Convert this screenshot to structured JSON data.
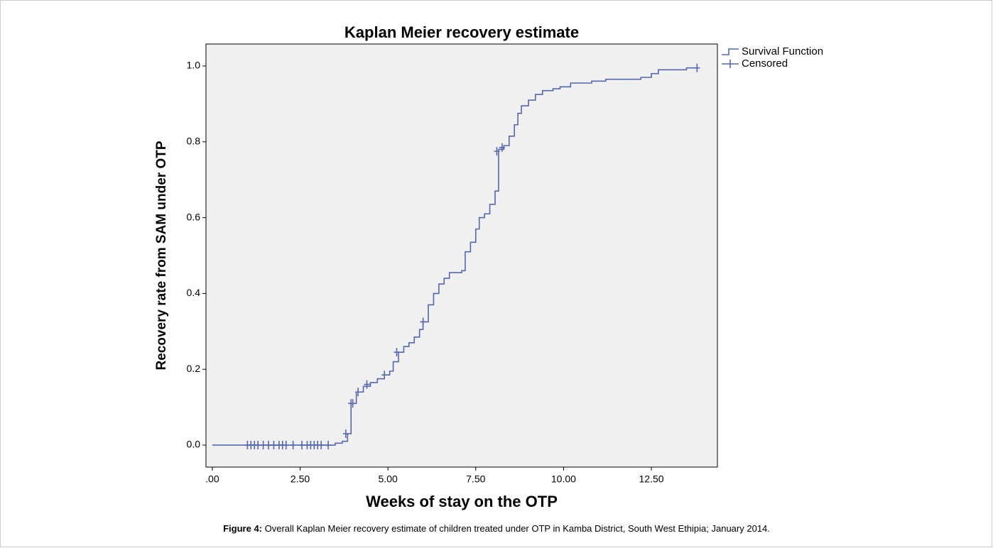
{
  "chart_data": {
    "type": "step",
    "title": "Kaplan Meier recovery estimate",
    "xlabel": "Weeks of stay on the OTP",
    "ylabel": "Recovery rate from SAM under OTP",
    "xlim": [
      -0.18,
      14.38
    ],
    "ylim": [
      -0.058,
      1.058
    ],
    "xticks": [
      {
        "value": 0,
        "label": ".00"
      },
      {
        "value": 2.5,
        "label": "2.50"
      },
      {
        "value": 5,
        "label": "5.00"
      },
      {
        "value": 7.5,
        "label": "7.50"
      },
      {
        "value": 10,
        "label": "10.00"
      },
      {
        "value": 12.5,
        "label": "12.50"
      }
    ],
    "yticks": [
      {
        "value": 0,
        "label": "0.0"
      },
      0.2,
      0.4,
      0.6,
      0.8,
      {
        "value": 1,
        "label": "1.0"
      }
    ],
    "series": [
      {
        "name": "Survival Function",
        "marker": "step",
        "color": "#5567b0",
        "x": [
          0,
          3.5,
          3.7,
          3.85,
          3.95,
          4.1,
          4.3,
          4.5,
          4.7,
          4.9,
          5.05,
          5.15,
          5.3,
          5.45,
          5.6,
          5.75,
          5.9,
          6.0,
          6.15,
          6.3,
          6.45,
          6.6,
          6.75,
          7.1,
          7.2,
          7.35,
          7.5,
          7.6,
          7.75,
          7.9,
          8.05,
          8.15,
          8.3,
          8.45,
          8.6,
          8.7,
          8.8,
          9.0,
          9.2,
          9.4,
          9.7,
          9.9,
          10.2,
          10.8,
          11.2,
          12.2,
          12.5,
          12.7,
          13.5,
          13.8
        ],
        "values": [
          0,
          0.005,
          0.01,
          0.03,
          0.11,
          0.14,
          0.155,
          0.165,
          0.175,
          0.185,
          0.195,
          0.22,
          0.245,
          0.26,
          0.27,
          0.285,
          0.305,
          0.325,
          0.37,
          0.4,
          0.425,
          0.44,
          0.455,
          0.46,
          0.51,
          0.535,
          0.57,
          0.6,
          0.61,
          0.635,
          0.67,
          0.78,
          0.79,
          0.815,
          0.845,
          0.875,
          0.895,
          0.91,
          0.925,
          0.935,
          0.94,
          0.945,
          0.955,
          0.96,
          0.965,
          0.97,
          0.98,
          0.99,
          0.995,
          0.995
        ]
      },
      {
        "name": "Censored",
        "marker": "plus",
        "color": "#5567b0",
        "x": [
          1.0,
          1.1,
          1.2,
          1.3,
          1.45,
          1.6,
          1.75,
          1.9,
          2.0,
          2.1,
          2.3,
          2.55,
          2.7,
          2.8,
          2.9,
          3.0,
          3.1,
          3.3,
          3.8,
          3.95,
          4.0,
          4.15,
          4.4,
          4.9,
          5.25,
          6.0,
          8.1,
          8.25,
          13.8
        ],
        "values": [
          0,
          0,
          0,
          0,
          0,
          0,
          0,
          0,
          0,
          0,
          0,
          0,
          0,
          0,
          0,
          0,
          0,
          0,
          0.03,
          0.11,
          0.11,
          0.14,
          0.16,
          0.185,
          0.245,
          0.325,
          0.775,
          0.785,
          0.995
        ]
      }
    ],
    "caption": {
      "label": "Figure 4:",
      "text": "Overall Kaplan Meier recovery estimate of children treated under OTP in Kamba District, South West Ethipia; January 2014."
    }
  }
}
